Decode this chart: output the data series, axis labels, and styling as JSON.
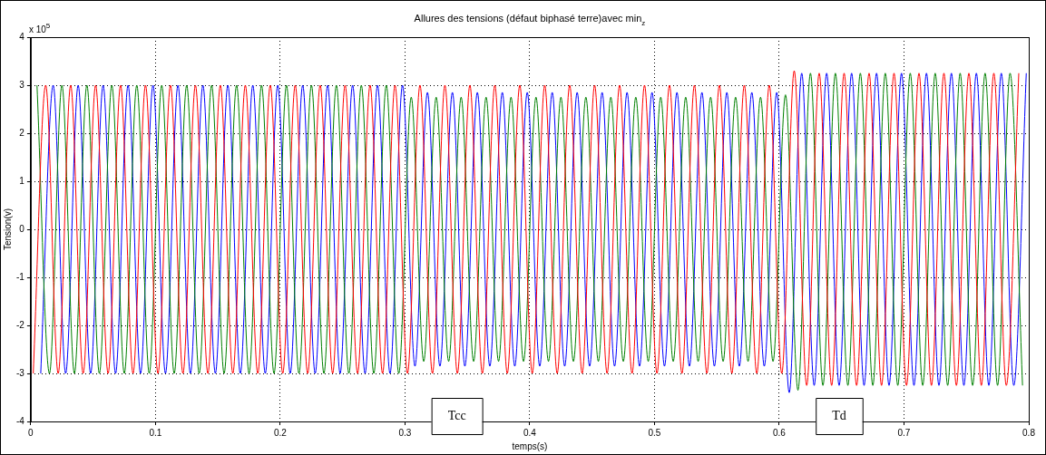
{
  "chart_data": {
    "type": "line",
    "title": "Allures des tensions (défaut biphasé terre)avec min$_{z}$",
    "xlabel": "temps(s)",
    "ylabel": "Tension(v)",
    "annotations": [
      "x 10$^{5}$",
      "Tcc",
      "Td"
    ],
    "xlim": [
      0,
      0.8
    ],
    "xticks": [
      0,
      0.1,
      0.2,
      0.3,
      0.4,
      0.5,
      0.6,
      0.7,
      0.8
    ],
    "ylim": [
      -4,
      4
    ],
    "yticks": [
      -4,
      -3,
      -2,
      -1,
      0,
      1,
      2,
      3,
      4
    ],
    "grid": true,
    "series": [
      {
        "color": "#ff0000",
        "x": [
          0.002,
          0.012,
          0.022,
          0.032,
          0.042,
          0.052,
          0.062,
          0.072,
          0.082,
          0.092,
          0.102,
          0.112,
          0.122,
          0.132,
          0.142,
          0.152,
          0.162,
          0.172,
          0.182,
          0.192,
          0.202,
          0.212,
          0.222,
          0.232,
          0.242,
          0.252,
          0.262,
          0.272,
          0.282,
          0.292,
          0.302,
          0.312,
          0.322,
          0.332,
          0.342,
          0.352,
          0.362,
          0.372,
          0.382,
          0.392,
          0.402,
          0.412,
          0.422,
          0.432,
          0.442,
          0.452,
          0.462,
          0.472,
          0.482,
          0.492,
          0.502,
          0.512,
          0.522,
          0.532,
          0.542,
          0.552,
          0.562,
          0.572,
          0.582,
          0.592,
          0.602,
          0.612,
          0.622,
          0.632,
          0.642,
          0.652,
          0.662,
          0.672,
          0.682,
          0.692,
          0.702,
          0.712,
          0.722,
          0.732,
          0.742,
          0.752,
          0.762,
          0.772,
          0.782,
          0.792
        ],
        "values": [
          -3,
          3,
          -3,
          3,
          -3,
          3,
          -3,
          3,
          -3,
          3,
          -3,
          3,
          -3,
          3,
          -3,
          3,
          -3,
          3,
          -3,
          3,
          -3,
          3,
          -3,
          3,
          -3,
          3,
          -3,
          3,
          -3,
          3,
          -3,
          3,
          -3,
          3,
          -3,
          3,
          -3,
          3,
          -3,
          3,
          -3,
          3,
          -3,
          3,
          -3,
          3,
          -3,
          3,
          -3,
          3,
          -3,
          3,
          -3,
          3,
          -3,
          3,
          -3,
          3,
          -3,
          3,
          -3,
          3.3,
          -3.25,
          3.25,
          -3.25,
          3.25,
          -3.25,
          3.25,
          -3.25,
          3.25,
          -3.25,
          3.25,
          -3.25,
          3.25,
          -3.25,
          3.25,
          -3.25,
          3.25,
          -3.25,
          3.25
        ]
      },
      {
        "color": "#008000",
        "x": [
          0.005,
          0.015,
          0.025,
          0.035,
          0.045,
          0.055,
          0.065,
          0.075,
          0.085,
          0.095,
          0.105,
          0.115,
          0.125,
          0.135,
          0.145,
          0.155,
          0.165,
          0.175,
          0.185,
          0.195,
          0.205,
          0.215,
          0.225,
          0.235,
          0.245,
          0.255,
          0.265,
          0.275,
          0.285,
          0.295,
          0.305,
          0.315,
          0.325,
          0.335,
          0.345,
          0.355,
          0.365,
          0.375,
          0.385,
          0.395,
          0.405,
          0.415,
          0.425,
          0.435,
          0.445,
          0.455,
          0.465,
          0.475,
          0.485,
          0.495,
          0.505,
          0.515,
          0.525,
          0.535,
          0.545,
          0.555,
          0.565,
          0.575,
          0.585,
          0.595,
          0.605,
          0.615,
          0.625,
          0.635,
          0.645,
          0.655,
          0.665,
          0.675,
          0.685,
          0.695,
          0.705,
          0.715,
          0.725,
          0.735,
          0.745,
          0.755,
          0.765,
          0.775,
          0.785,
          0.795
        ],
        "values": [
          3,
          -3,
          3,
          -3,
          3,
          -3,
          3,
          -3,
          3,
          -3,
          3,
          -3,
          3,
          -3,
          3,
          -3,
          3,
          -3,
          3,
          -3,
          3,
          -3,
          3,
          -3,
          3,
          -3,
          3,
          -3,
          3,
          -3,
          2.75,
          -2.75,
          2.75,
          -2.75,
          2.75,
          -2.75,
          2.75,
          -2.75,
          2.75,
          -2.75,
          2.75,
          -2.75,
          2.75,
          -2.75,
          2.75,
          -2.75,
          2.75,
          -2.75,
          2.75,
          -2.75,
          2.75,
          -2.75,
          2.75,
          -2.75,
          2.75,
          -2.75,
          2.75,
          -2.75,
          2.75,
          -2.75,
          2.8,
          -3.35,
          3.25,
          -3.25,
          3.25,
          -3.25,
          3.25,
          -3.25,
          3.25,
          -3.25,
          3.25,
          -3.25,
          3.25,
          -3.25,
          3.25,
          -3.25,
          3.25,
          -3.25,
          3.25,
          -3.25
        ]
      },
      {
        "color": "#0000ff",
        "x": [
          0.008,
          0.018,
          0.028,
          0.038,
          0.048,
          0.058,
          0.068,
          0.078,
          0.088,
          0.098,
          0.108,
          0.118,
          0.128,
          0.138,
          0.148,
          0.158,
          0.168,
          0.178,
          0.188,
          0.198,
          0.208,
          0.218,
          0.228,
          0.238,
          0.248,
          0.258,
          0.268,
          0.278,
          0.288,
          0.298,
          0.308,
          0.318,
          0.328,
          0.338,
          0.348,
          0.358,
          0.368,
          0.378,
          0.388,
          0.398,
          0.408,
          0.418,
          0.428,
          0.438,
          0.448,
          0.458,
          0.468,
          0.478,
          0.488,
          0.498,
          0.508,
          0.518,
          0.528,
          0.538,
          0.548,
          0.558,
          0.568,
          0.578,
          0.588,
          0.598,
          0.608,
          0.618,
          0.628,
          0.638,
          0.648,
          0.658,
          0.668,
          0.678,
          0.688,
          0.698,
          0.708,
          0.718,
          0.728,
          0.738,
          0.748,
          0.758,
          0.768,
          0.778,
          0.788,
          0.798
        ],
        "values": [
          -3,
          3,
          -3,
          3,
          -3,
          3,
          -3,
          3,
          -3,
          3,
          -3,
          3,
          -3,
          3,
          -3,
          3,
          -3,
          3,
          -3,
          3,
          -3,
          3,
          -3,
          3,
          -3,
          3,
          -3,
          3,
          -3,
          3,
          -2.85,
          2.85,
          -2.85,
          2.85,
          -2.85,
          2.85,
          -2.85,
          2.85,
          -2.85,
          2.85,
          -2.85,
          2.85,
          -2.85,
          2.85,
          -2.85,
          2.85,
          -2.85,
          2.85,
          -2.85,
          2.85,
          -2.85,
          2.85,
          -2.85,
          2.85,
          -2.85,
          2.85,
          -2.85,
          2.85,
          -2.85,
          2.85,
          -3.4,
          3.25,
          -3.25,
          3.25,
          -3.25,
          3.25,
          -3.25,
          3.25,
          -3.25,
          3.25,
          -3.25,
          3.25,
          -3.25,
          3.25,
          -3.25,
          3.25,
          -3.25,
          3.25,
          -3.25,
          3.25
        ]
      }
    ]
  }
}
